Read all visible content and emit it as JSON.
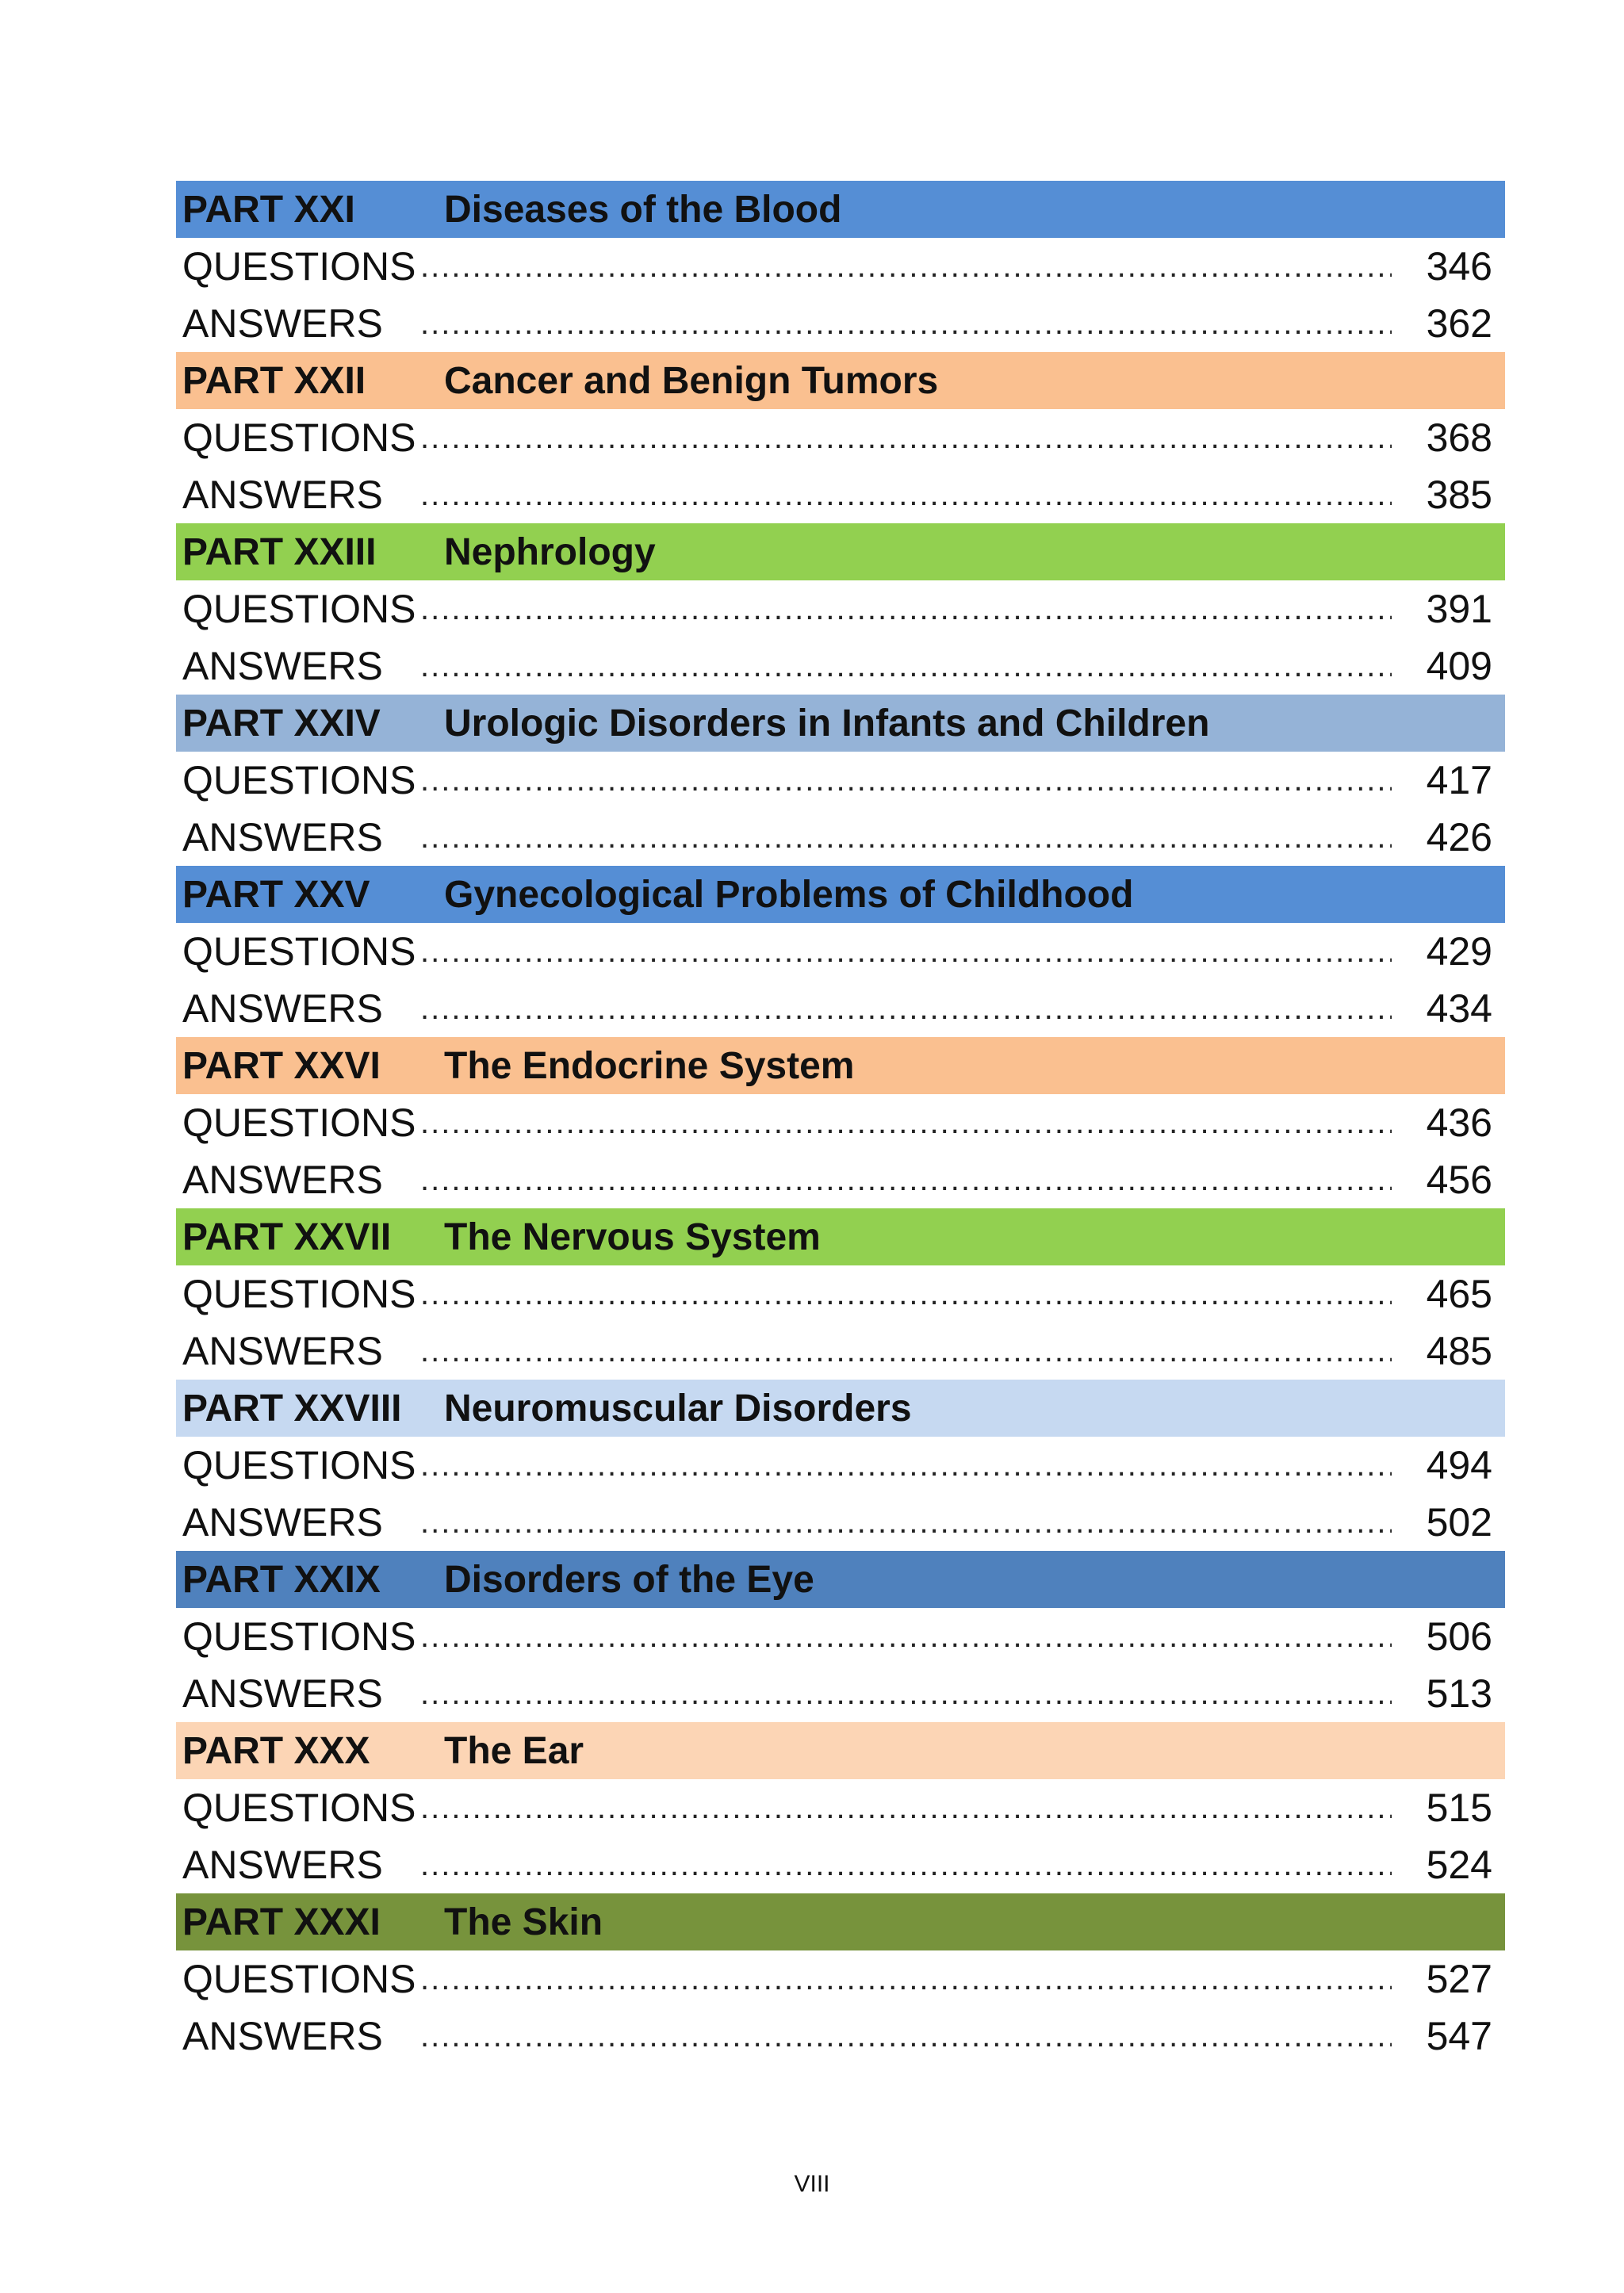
{
  "parts": [
    {
      "number": "PART XXI",
      "title": "Diseases of the Blood",
      "color": "#558ed5",
      "entries": [
        {
          "label": "QUESTIONS",
          "page": "346"
        },
        {
          "label": "ANSWERS",
          "page": "362"
        }
      ]
    },
    {
      "number": "PART XXII",
      "title": "Cancer and Benign Tumors",
      "color": "#fac090",
      "entries": [
        {
          "label": "QUESTIONS",
          "page": "368"
        },
        {
          "label": "ANSWERS",
          "page": "385"
        }
      ]
    },
    {
      "number": "PART XXIII",
      "title": "Nephrology",
      "color": "#92d050",
      "entries": [
        {
          "label": "QUESTIONS",
          "page": "391"
        },
        {
          "label": "ANSWERS",
          "page": "409"
        }
      ]
    },
    {
      "number": "PART XXIV",
      "title": "Urologic Disorders in Infants and Children",
      "color": "#95b3d7",
      "entries": [
        {
          "label": "QUESTIONS",
          "page": "417"
        },
        {
          "label": "ANSWERS",
          "page": "426"
        }
      ]
    },
    {
      "number": "PART XXV",
      "title": "Gynecological Problems of Childhood",
      "color": "#558ed5",
      "entries": [
        {
          "label": "QUESTIONS",
          "page": "429"
        },
        {
          "label": "ANSWERS",
          "page": "434"
        }
      ]
    },
    {
      "number": "PART XXVI",
      "title": "The Endocrine System",
      "color": "#fac090",
      "entries": [
        {
          "label": "QUESTIONS",
          "page": "436"
        },
        {
          "label": "ANSWERS",
          "page": "456"
        }
      ]
    },
    {
      "number": "PART XXVII",
      "title": "The Nervous System",
      "color": "#92d050",
      "entries": [
        {
          "label": "QUESTIONS",
          "page": "465"
        },
        {
          "label": "ANSWERS",
          "page": "485"
        }
      ]
    },
    {
      "number": "PART XXVIII",
      "title": "Neuromuscular Disorders",
      "color": "#c6d9f1",
      "entries": [
        {
          "label": "QUESTIONS",
          "page": "494"
        },
        {
          "label": "ANSWERS",
          "page": "502"
        }
      ]
    },
    {
      "number": "PART XXIX",
      "title": "Disorders of the Eye",
      "color": "#4f81bd",
      "entries": [
        {
          "label": "QUESTIONS",
          "page": "506"
        },
        {
          "label": "ANSWERS",
          "page": "513"
        }
      ]
    },
    {
      "number": "PART XXX",
      "title": "The Ear",
      "color": "#fcd5b5",
      "entries": [
        {
          "label": "QUESTIONS",
          "page": "515"
        },
        {
          "label": "ANSWERS",
          "page": "524"
        }
      ]
    },
    {
      "number": "PART XXXI",
      "title": "The Skin",
      "color": "#77933c",
      "entries": [
        {
          "label": "QUESTIONS",
          "page": "527"
        },
        {
          "label": "ANSWERS",
          "page": "547"
        }
      ]
    }
  ],
  "footer": {
    "page_number": "VIII"
  }
}
